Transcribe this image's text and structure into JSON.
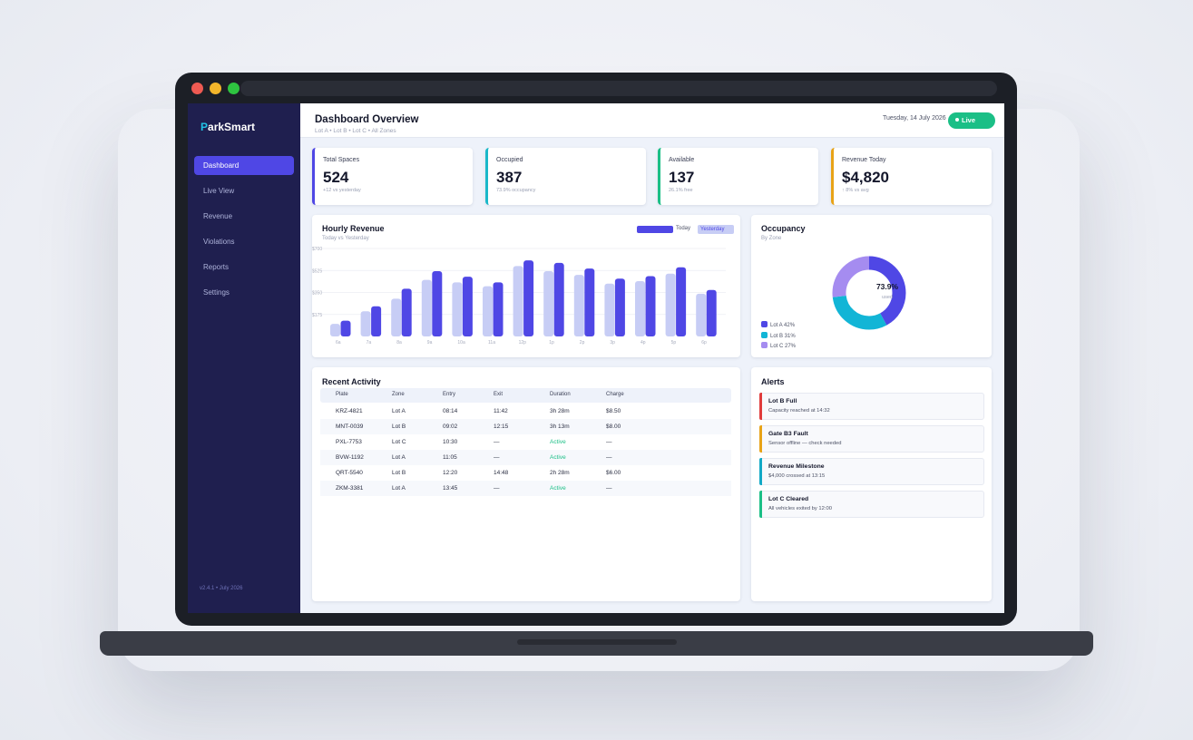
{
  "app": {
    "logo_first": "P",
    "logo_rest": "arkSmart",
    "version": "v2.4.1  •  July 2026"
  },
  "nav": [
    {
      "label": "Dashboard",
      "active": true
    },
    {
      "label": "Live View"
    },
    {
      "label": "Revenue"
    },
    {
      "label": "Violations"
    },
    {
      "label": "Reports"
    },
    {
      "label": "Settings"
    }
  ],
  "header": {
    "title": "Dashboard Overview",
    "breadcrumb": "Lot A  •  Lot B  •  Lot C  •  All Zones",
    "date": "Tuesday, 14 July 2026",
    "status": "Live"
  },
  "stats": [
    {
      "label": "Total Spaces",
      "value": "524",
      "sub": "+12 vs yesterday",
      "color": "#4f47e5"
    },
    {
      "label": "Occupied",
      "value": "387",
      "sub": "73.9% occupancy",
      "color": "#1ab8c9"
    },
    {
      "label": "Available",
      "value": "137",
      "sub": "26.1% free",
      "color": "#1bbf86"
    },
    {
      "label": "Revenue Today",
      "value": "$4,820",
      "sub": "↑ 8% vs avg",
      "color": "#e8a317"
    }
  ],
  "revenue_chart": {
    "title": "Hourly Revenue",
    "subtitle": "Today vs Yesterday",
    "legend_today": "Today",
    "legend_yesterday": "Yesterday"
  },
  "occupancy": {
    "title": "Occupancy",
    "subtitle": "By Zone",
    "center_value": "73.9%",
    "center_label": "used",
    "legend": [
      {
        "label": "Lot A  42%",
        "color": "#4f47e5"
      },
      {
        "label": "Lot B  31%",
        "color": "#12b5d6"
      },
      {
        "label": "Lot C  27%",
        "color": "#a58cf0"
      }
    ]
  },
  "chart_data": [
    {
      "type": "bar",
      "title": "Hourly Revenue",
      "subtitle": "Today vs Yesterday",
      "categories": [
        "6a",
        "7a",
        "8a",
        "9a",
        "10a",
        "11a",
        "12p",
        "1p",
        "2p",
        "3p",
        "4p",
        "5p",
        "6p"
      ],
      "yticks": [
        {
          "value": 175,
          "label": "$175"
        },
        {
          "value": 350,
          "label": "$350"
        },
        {
          "value": 525,
          "label": "$525"
        },
        {
          "value": 700,
          "label": "$700"
        }
      ],
      "ylim": [
        0,
        700
      ],
      "grid": true,
      "legend": "top-right",
      "series": [
        {
          "name": "Yesterday",
          "color": "#c7cdf5",
          "values": [
            100,
            200,
            300,
            450,
            430,
            400,
            560,
            520,
            490,
            420,
            440,
            500,
            340
          ]
        },
        {
          "name": "Today",
          "color": "#4f47e5",
          "values": [
            125,
            240,
            380,
            520,
            475,
            430,
            605,
            585,
            540,
            460,
            480,
            550,
            370
          ]
        }
      ]
    },
    {
      "type": "pie",
      "title": "Occupancy",
      "subtitle": "By Zone",
      "labels": [
        "Lot A",
        "Lot B",
        "Lot C"
      ],
      "values": [
        42,
        31,
        27
      ],
      "colors": [
        "#4f47e5",
        "#12b5d6",
        "#a58cf0"
      ]
    }
  ],
  "activity": {
    "title": "Recent Activity",
    "columns": [
      "Plate",
      "Zone",
      "Entry",
      "Exit",
      "Duration",
      "Charge"
    ],
    "rows": [
      [
        "KRZ-4821",
        "Lot A",
        "08:14",
        "11:42",
        "3h 28m",
        "$8.50"
      ],
      [
        "MNT-0039",
        "Lot B",
        "09:02",
        "12:15",
        "3h 13m",
        "$8.00"
      ],
      [
        "PXL-7753",
        "Lot C",
        "10:30",
        "—",
        "Active",
        "—"
      ],
      [
        "BVW-1192",
        "Lot A",
        "11:05",
        "—",
        "Active",
        "—"
      ],
      [
        "QRT-5540",
        "Lot B",
        "12:20",
        "14:48",
        "2h 28m",
        "$6.00"
      ],
      [
        "ZKM-3381",
        "Lot A",
        "13:45",
        "—",
        "Active",
        "—"
      ]
    ]
  },
  "alerts": {
    "title": "Alerts",
    "items": [
      {
        "title": "Lot B Full",
        "desc": "Capacity reached at 14:32",
        "color": "#e03b3b"
      },
      {
        "title": "Gate B3 Fault",
        "desc": "Sensor offline — check needed",
        "color": "#e8a317"
      },
      {
        "title": "Revenue Milestone",
        "desc": "$4,000 crossed at 13:15",
        "color": "#12a9c6"
      },
      {
        "title": "Lot C Cleared",
        "desc": "All vehicles exited by 12:00",
        "color": "#1bbf86"
      }
    ]
  }
}
